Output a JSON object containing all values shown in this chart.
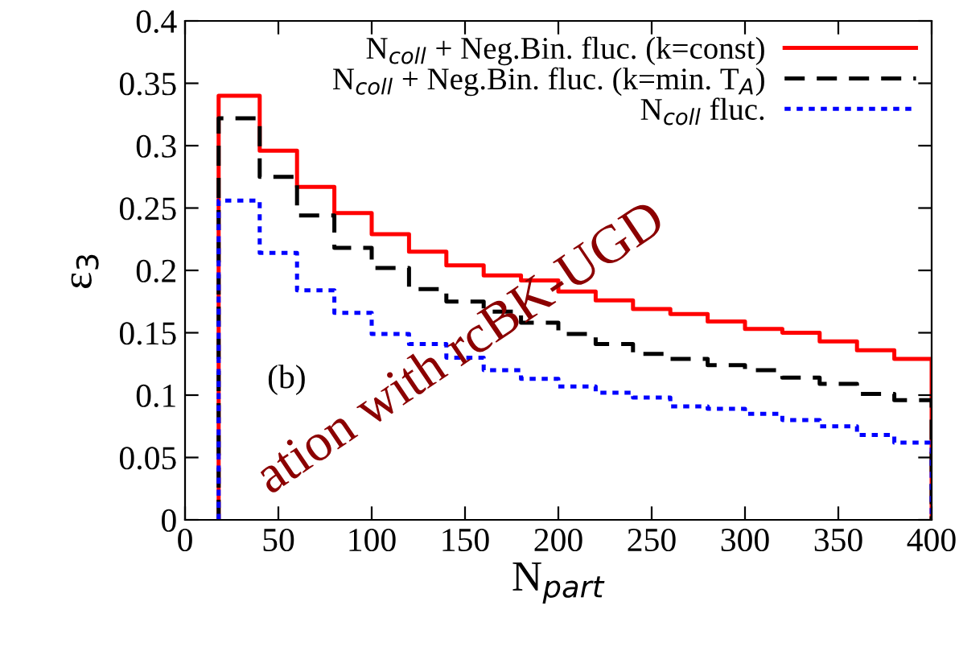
{
  "chart_data": {
    "type": "histogram",
    "xlabel": "N$_{part}$",
    "ylabel": "ε$_{3}$",
    "bins": [
      18,
      40,
      60,
      80,
      100,
      120,
      140,
      160,
      180,
      200,
      220,
      240,
      260,
      280,
      300,
      320,
      340,
      360,
      380,
      400
    ],
    "series": [
      {
        "name": "N$_{coll}$ + Neg.Bin. fluc. (k=const)",
        "color": "#ff0000",
        "line_style": "solid",
        "values": [
          0.34,
          0.296,
          0.267,
          0.246,
          0.229,
          0.215,
          0.204,
          0.196,
          0.192,
          0.183,
          0.176,
          0.169,
          0.165,
          0.159,
          0.153,
          0.15,
          0.143,
          0.136,
          0.129
        ]
      },
      {
        "name": "N$_{coll}$ + Neg.Bin. fluc. (k=min. T$_{A}$)",
        "color": "#000000",
        "line_style": "dashed",
        "values": [
          0.322,
          0.275,
          0.244,
          0.218,
          0.202,
          0.185,
          0.175,
          0.167,
          0.158,
          0.149,
          0.141,
          0.133,
          0.129,
          0.124,
          0.12,
          0.114,
          0.109,
          0.101,
          0.096
        ]
      },
      {
        "name": "N$_{coll}$ fluc.",
        "color": "#0000ff",
        "line_style": "dotted",
        "values": [
          0.256,
          0.214,
          0.184,
          0.166,
          0.149,
          0.141,
          0.13,
          0.12,
          0.113,
          0.107,
          0.102,
          0.098,
          0.091,
          0.089,
          0.085,
          0.08,
          0.075,
          0.068,
          0.062
        ]
      }
    ],
    "xlim": [
      0,
      400
    ],
    "ylim": [
      0,
      0.4
    ],
    "xticks": [
      0,
      50,
      100,
      150,
      200,
      250,
      300,
      350,
      400
    ],
    "yticks": [
      0,
      0.05,
      0.1,
      0.15,
      0.2,
      0.25,
      0.3,
      0.35,
      0.4
    ],
    "grid": false,
    "legend": "top right",
    "annotations": [
      "(b)",
      "ation with rcBK-UGD"
    ]
  }
}
